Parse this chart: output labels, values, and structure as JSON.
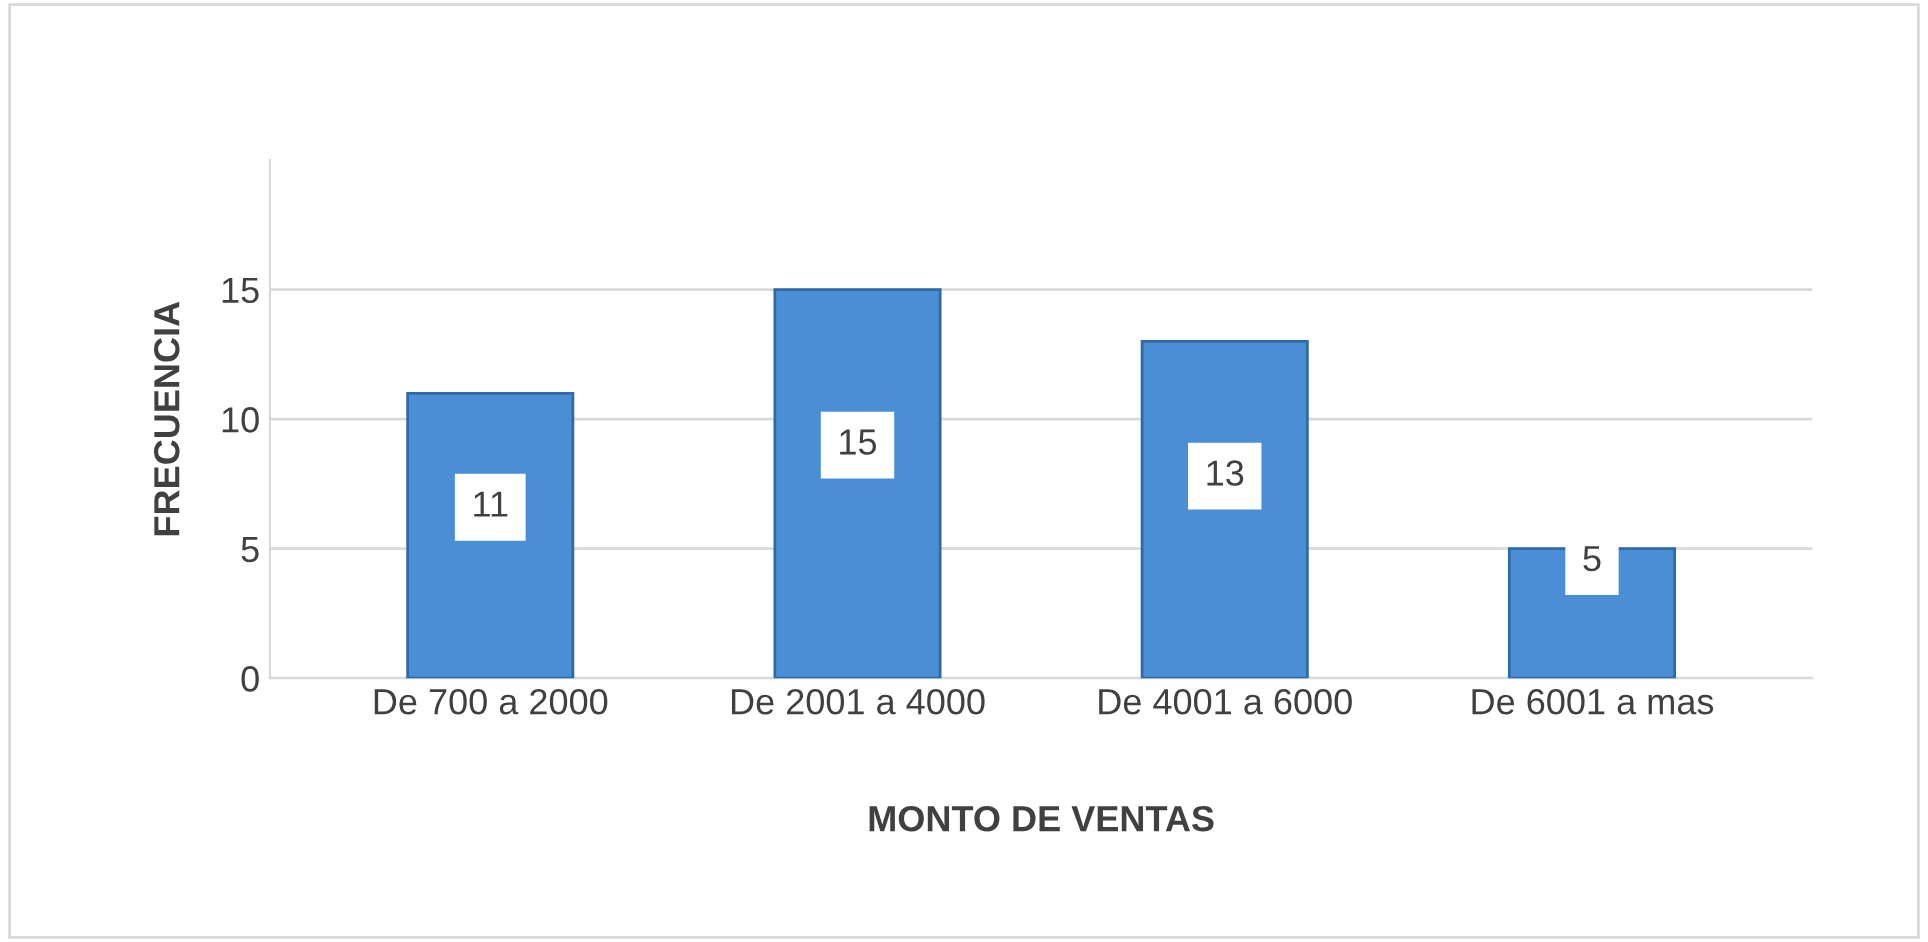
{
  "chart_data": {
    "type": "bar",
    "xlabel": "MONTO DE VENTAS",
    "ylabel": "FRECUENCIA",
    "categories": [
      "De 700 a 2000",
      "De 2001 a 4000",
      "De 4001 a 6000",
      "De 6001 a mas"
    ],
    "values": [
      11,
      15,
      13,
      5
    ],
    "color": "#4a8fd6",
    "ylim": [
      0,
      20
    ],
    "yticks": [
      0,
      5,
      10,
      15
    ],
    "grid": "y",
    "data_labels": true
  }
}
